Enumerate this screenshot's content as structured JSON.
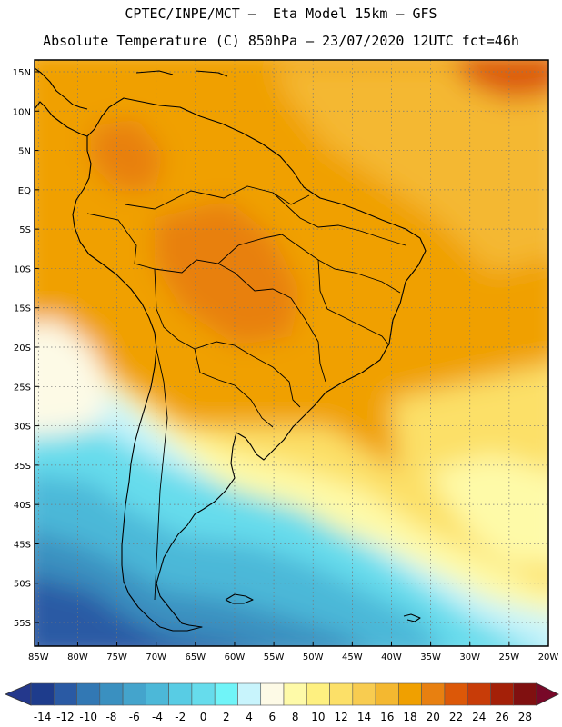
{
  "header": {
    "line1": "CPTEC/INPE/MCT –  Eta Model 15km – GFS",
    "line2": "Absolute Temperature (C) 850hPa – 23/07/2020 12UTC fct=46h"
  },
  "map": {
    "lat_labels": [
      "15N",
      "10N",
      "5N",
      "EQ",
      "5S",
      "10S",
      "15S",
      "20S",
      "25S",
      "30S",
      "35S",
      "40S",
      "45S",
      "50S",
      "55S"
    ],
    "lat_values": [
      15,
      10,
      5,
      0,
      -5,
      -10,
      -15,
      -20,
      -25,
      -30,
      -35,
      -40,
      -45,
      -50,
      -55
    ],
    "lon_labels": [
      "85W",
      "80W",
      "75W",
      "70W",
      "65W",
      "60W",
      "55W",
      "50W",
      "45W",
      "40W",
      "35W",
      "30W",
      "25W",
      "20W"
    ],
    "lon_values": [
      -85,
      -80,
      -75,
      -70,
      -65,
      -60,
      -55,
      -50,
      -45,
      -40,
      -35,
      -30,
      -25,
      -20
    ],
    "lon_range": [
      -85.5,
      -20
    ],
    "lat_range": [
      -58,
      16.5
    ]
  },
  "colorbar": {
    "tick_labels": [
      "-14",
      "-12",
      "-10",
      "-8",
      "-6",
      "-4",
      "-2",
      "0",
      "2",
      "4",
      "6",
      "8",
      "10",
      "12",
      "14",
      "16",
      "18",
      "20",
      "22",
      "24",
      "26",
      "28"
    ],
    "colors": [
      "#1e3c8c",
      "#2a5aa4",
      "#3278b4",
      "#3a90c0",
      "#44a4cc",
      "#4cb8d8",
      "#58cce4",
      "#66dcec",
      "#70f4f8",
      "#c8f4fc",
      "#fdfae6",
      "#fefaa8",
      "#fef080",
      "#fce068",
      "#f8cc50",
      "#f4b830",
      "#f0a000",
      "#e88010",
      "#dc5808",
      "#c83c08",
      "#a42008",
      "#801010"
    ],
    "under_color": "#24388c",
    "over_color": "#780828"
  }
}
